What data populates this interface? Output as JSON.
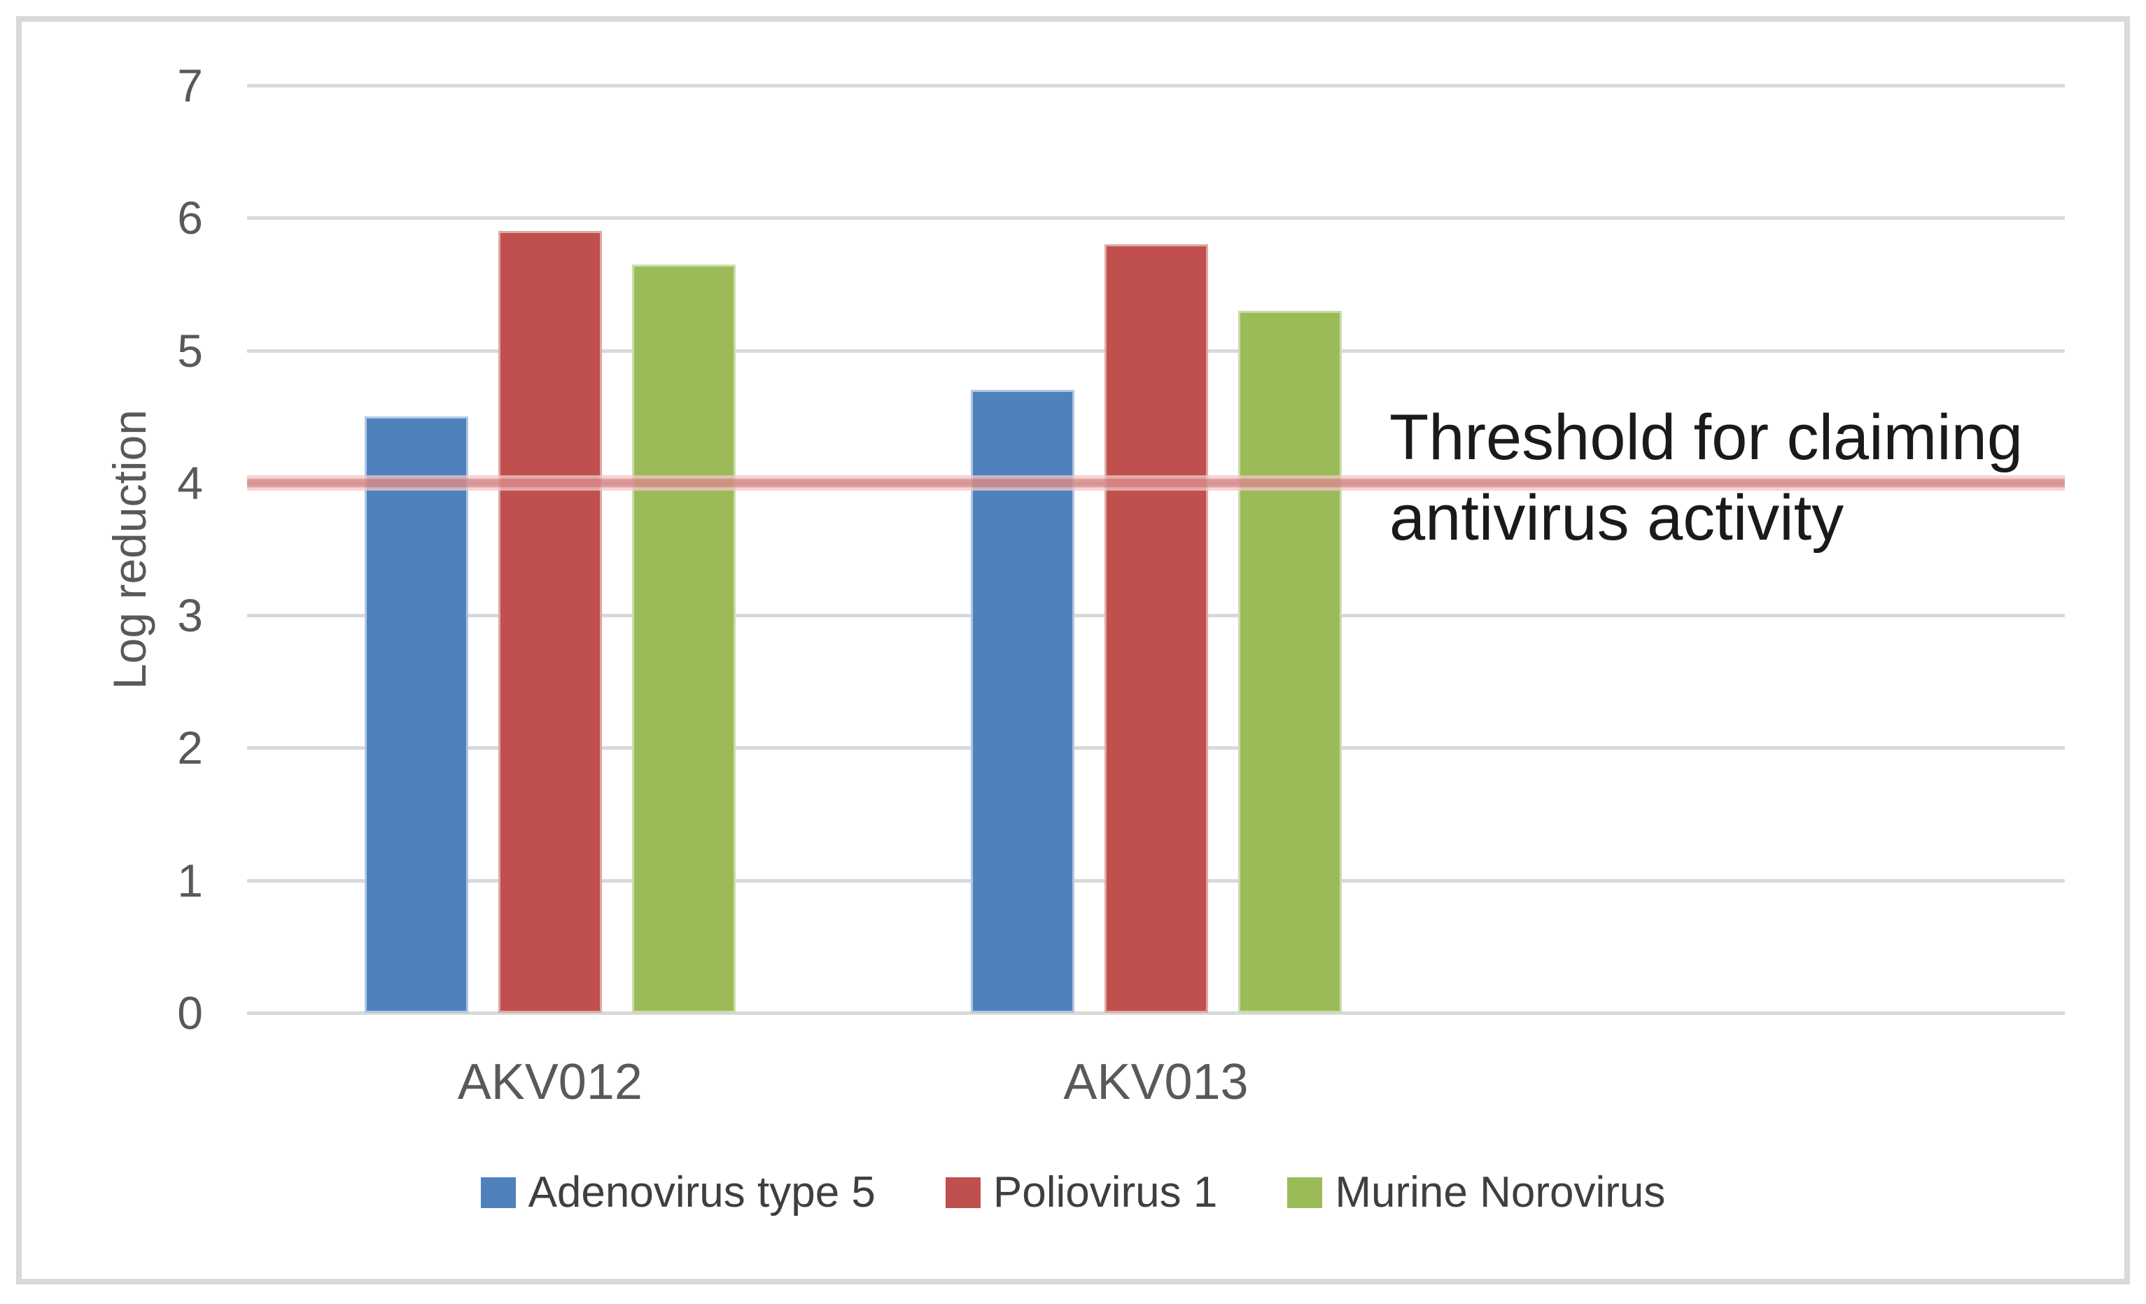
{
  "figure": {
    "background": "#ffffff",
    "frame_border_color": "#d9d9d9"
  },
  "chart_data": {
    "type": "bar",
    "title": "",
    "categories": [
      "AKV012",
      "AKV013"
    ],
    "series": [
      {
        "name": "Adenovirus type 5",
        "color": "#4f81bd",
        "border_color": "#aec6e2",
        "values": [
          4.5,
          4.7
        ]
      },
      {
        "name": "Poliovirus 1",
        "color": "#c0504d",
        "border_color": "#dda8a5",
        "values": [
          5.9,
          5.8
        ]
      },
      {
        "name": "Murine Norovirus",
        "color": "#9bbb59",
        "border_color": "#cbdcaa",
        "values": [
          5.65,
          5.3
        ]
      }
    ],
    "xlabel": "",
    "ylabel": "Log reduction",
    "ylim": [
      0,
      7
    ],
    "yticks": [
      7,
      6,
      5,
      4,
      3,
      2,
      1,
      0
    ],
    "grid": true,
    "gridline_color": "#d9d9d9",
    "axis_text_color": "#595959",
    "legend_position": "bottom",
    "legend_text_color": "#3f3f3f",
    "category_slots": 3,
    "threshold_line": {
      "y": 4,
      "core_color": "#d78a89",
      "edge_color": "#f0c7c6"
    },
    "annotation": {
      "text_line1": "Threshold for claiming",
      "text_line2": "antivirus activity",
      "text_color": "#1a1a1a"
    }
  }
}
